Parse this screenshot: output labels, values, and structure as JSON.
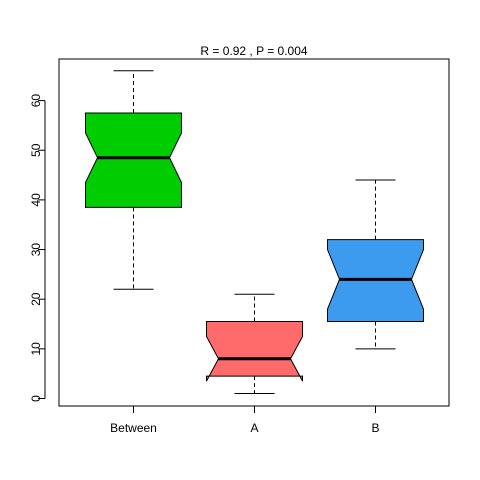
{
  "chart_data": {
    "type": "boxplot",
    "notched": true,
    "title": "R =  0.92 ,  P =  0.004",
    "xlabel": "",
    "ylabel": "",
    "ylim": [
      0,
      68
    ],
    "yticks": [
      0,
      10,
      20,
      30,
      40,
      50,
      60
    ],
    "grid": false,
    "legend": "none",
    "categories": [
      "Between",
      "A",
      "B"
    ],
    "boxes": [
      {
        "label": "Between",
        "color": "#00CD00",
        "whisker_low": 22,
        "q1": 38.5,
        "median": 48.5,
        "q3": 57.5,
        "whisker_high": 66,
        "notch_low": 43.5,
        "notch_high": 53.5
      },
      {
        "label": "A",
        "color": "#FF6A6A",
        "whisker_low": 1,
        "q1": 4.5,
        "median": 8,
        "q3": 15.5,
        "whisker_high": 21,
        "notch_low": 3.5,
        "notch_high": 12.5
      },
      {
        "label": "B",
        "color": "#3D9BEF",
        "whisker_low": 10,
        "q1": 15.5,
        "median": 24,
        "q3": 32,
        "whisker_high": 44,
        "notch_low": 18,
        "notch_high": 30
      }
    ]
  }
}
